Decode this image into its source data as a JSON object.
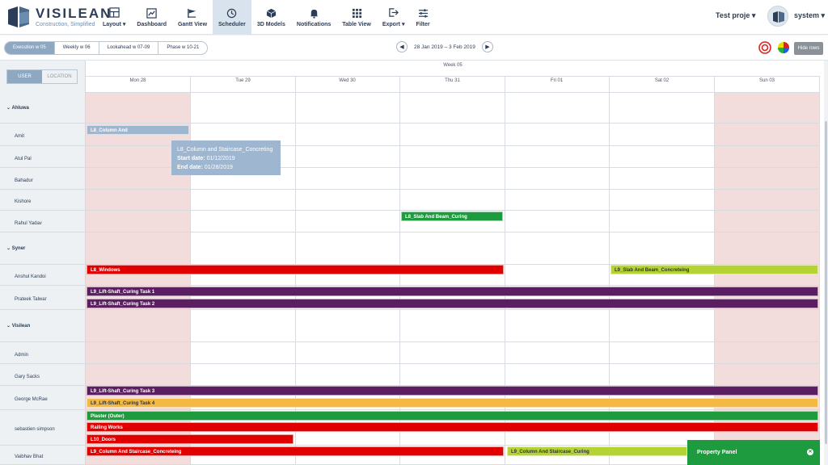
{
  "app": {
    "name": "VISILEAN",
    "tagline": "Construction, Simplified"
  },
  "nav": [
    {
      "label": "Layout ▾",
      "icon": "layout-icon"
    },
    {
      "label": "Dashboard",
      "icon": "dashboard-icon"
    },
    {
      "label": "Gantt View",
      "icon": "gantt-icon"
    },
    {
      "label": "Scheduler",
      "icon": "clock-icon",
      "active": true
    },
    {
      "label": "3D Models",
      "icon": "cube-icon"
    },
    {
      "label": "Notifications",
      "icon": "bell-icon"
    },
    {
      "label": "Table View",
      "icon": "table-icon"
    },
    {
      "label": "Export ▾",
      "icon": "export-icon"
    },
    {
      "label": "Filter",
      "icon": "filter-icon"
    }
  ],
  "project": "Test proje ▾",
  "user": "system ▾",
  "views": [
    {
      "label": "Execution   w 05",
      "active": true
    },
    {
      "label": "Weekly   w 06"
    },
    {
      "label": "Lookahead   w 07-09"
    },
    {
      "label": "Phase   w 10-21"
    }
  ],
  "date_range": "28 Jan 2019 – 3 Feb 2019",
  "hide_rows": "Hide rows",
  "toggle": {
    "user": "USER",
    "location": "LOCATION"
  },
  "week_label": "Week 05",
  "days": [
    "Mon 28",
    "Tue 29",
    "Wed 30",
    "Thu 31",
    "Fri 01",
    "Sat 02",
    "Sun 03"
  ],
  "rows": [
    {
      "name": "Ahluwa",
      "group": true
    },
    {
      "name": "Amit"
    },
    {
      "name": "Atul Pal"
    },
    {
      "name": "Bahadur"
    },
    {
      "name": "Kishore"
    },
    {
      "name": "Rahul Yadav"
    },
    {
      "name": "Syner",
      "group": true
    },
    {
      "name": "Anshul Kandoi"
    },
    {
      "name": "Prateek Talwar"
    },
    {
      "name": "Visilean",
      "group": true
    },
    {
      "name": "Admin"
    },
    {
      "name": "Gary Sacks"
    },
    {
      "name": "George McRae"
    },
    {
      "name": "sebastien simpson"
    },
    {
      "name": "Vaibhav Bhat"
    }
  ],
  "tasks": [
    {
      "label": "L8_Column And",
      "color": "#9eb6cf"
    },
    {
      "label": "L8_Slab And Beam_Curing",
      "color": "#1e9b3e"
    },
    {
      "label": "L8_Windows",
      "color": "#e00000"
    },
    {
      "label": "L9_Slab And Beam_Concreteing",
      "color": "#b5d334"
    },
    {
      "label": "L9_Lift-Shaft_Curing Task 1",
      "color": "#5b1e60"
    },
    {
      "label": "L9_Lift-Shaft_Curing Task 2",
      "color": "#5b1e60"
    },
    {
      "label": "L9_Lift-Shaft_Curing Task 3",
      "color": "#5b1e60"
    },
    {
      "label": "L9_Lift-Shaft_Curing Task 4",
      "color": "#f4b942"
    },
    {
      "label": "Plaster (Outer)",
      "color": "#1e9b3e"
    },
    {
      "label": "Railing Works",
      "color": "#e00000"
    },
    {
      "label": "L10_Doors",
      "color": "#e00000"
    },
    {
      "label": "L9_Column And Staircase_Concreteing",
      "color": "#e00000"
    },
    {
      "label": "L9_Column And Staircase_Curing",
      "color": "#b5d334"
    }
  ],
  "tooltip": {
    "title": "L8_Column and Staircase_Concreting",
    "start_label": "Start date:",
    "start": "01/12/2019",
    "end_label": "End date:",
    "end": "01/28/2019"
  },
  "property_panel": "Property Panel"
}
